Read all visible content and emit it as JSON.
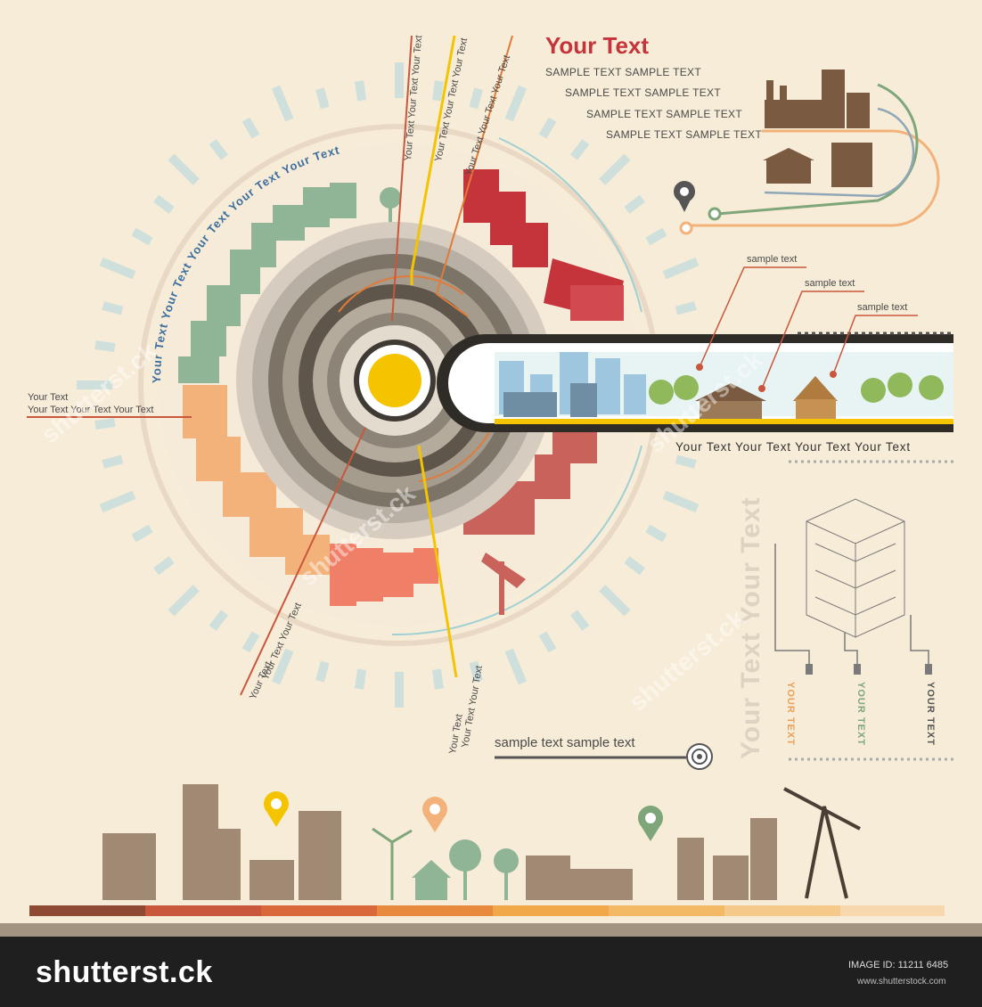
{
  "header": {
    "title": "Your Text",
    "lines": [
      "SAMPLE TEXT SAMPLE TEXT",
      "SAMPLE TEXT SAMPLE TEXT",
      "SAMPLE TEXT SAMPLE TEXT",
      "SAMPLE TEXT SAMPLE TEXT"
    ]
  },
  "ring": {
    "arc_text": "Your Text Your Text Your Text Your Text Your Text",
    "ray_labels": [
      "Your Text Your Text Your Text",
      "Your Text Your Text Your Text",
      "Your Text Your Text Your Text"
    ],
    "lower_labels_a": [
      "Your Text",
      "Your Text Your Text"
    ],
    "lower_labels_b": [
      "Your Text",
      "Your Text Your Text"
    ]
  },
  "left_labels": {
    "line1": "Your Text",
    "line2": "Your Text Your Text Your Text"
  },
  "callouts": [
    "sample text",
    "sample text",
    "sample text"
  ],
  "strip_caption": "Your Text Your Text Your Text Your Text",
  "panel": {
    "vertical_title": "Your Text Your Text",
    "columns": [
      {
        "label": "YOUR TEXT",
        "color": "#e8a15a"
      },
      {
        "label": "YOUR TEXT",
        "color": "#7ea67a"
      },
      {
        "label": "YOUR TEXT",
        "color": "#555555"
      }
    ]
  },
  "lower_sample": "sample text  sample text",
  "colors": {
    "background": "#f7ecd7",
    "red": "#c4343a",
    "orange": "#e8a15a",
    "green": "#7ea67a",
    "brown": "#a08a74",
    "teal": "#9fd0d4",
    "yellow": "#f5c400"
  },
  "footer": {
    "brand": "shutterst.ck",
    "image_id": "IMAGE ID: 11211 6485",
    "site": "www.shutterstock.com"
  },
  "watermark": "shutterst.ck"
}
